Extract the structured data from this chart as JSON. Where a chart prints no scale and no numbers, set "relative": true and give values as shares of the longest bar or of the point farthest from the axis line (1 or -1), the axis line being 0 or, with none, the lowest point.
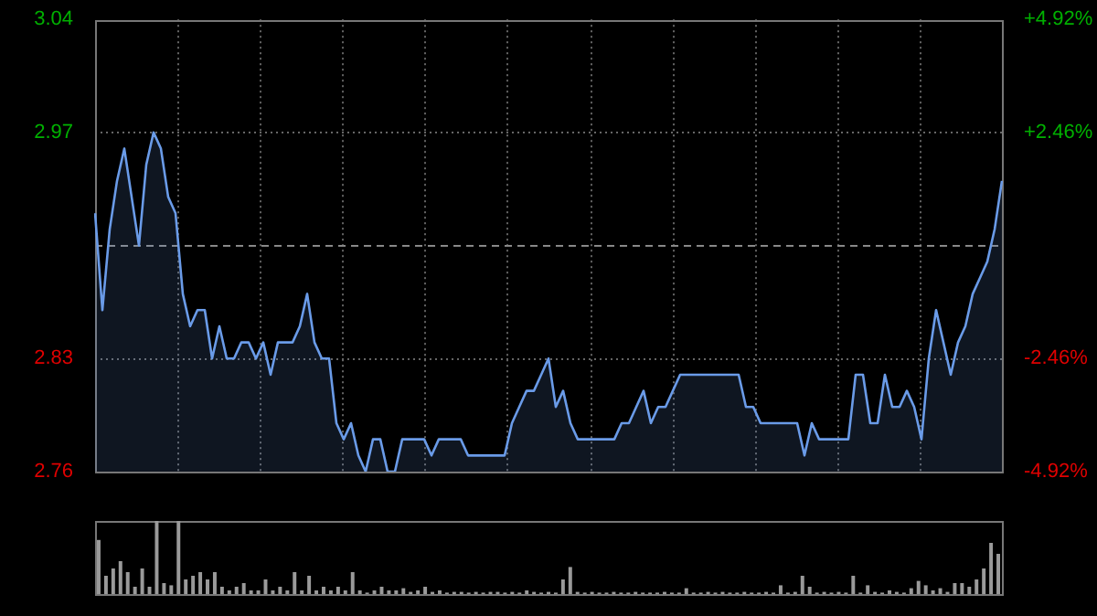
{
  "chart_data": [
    {
      "type": "area",
      "categories": [
        null,
        null,
        null,
        null,
        null,
        null,
        null,
        null,
        null,
        null,
        null,
        null,
        null,
        null,
        null,
        null,
        null,
        null,
        null,
        null,
        null,
        null,
        null,
        null,
        null,
        null,
        null,
        null,
        null,
        null,
        null,
        null,
        null,
        null,
        null,
        null,
        null,
        null,
        null,
        null,
        null,
        null,
        null,
        null,
        null,
        null,
        null,
        null,
        null,
        null,
        null,
        null,
        null,
        null,
        null,
        null,
        null,
        null,
        null,
        null,
        null,
        null,
        null,
        null,
        null,
        null,
        null,
        null,
        null,
        null,
        null,
        null,
        null,
        null,
        null,
        null,
        null,
        null,
        null,
        null,
        null,
        null,
        null,
        null,
        null,
        null,
        null,
        null,
        null,
        null,
        null,
        null,
        null,
        null,
        null,
        null,
        null,
        null,
        null,
        null,
        null,
        null,
        null,
        null,
        null,
        null,
        null,
        null,
        null,
        null,
        null,
        null,
        null,
        null,
        null,
        null,
        null,
        null,
        null,
        null,
        null,
        null,
        null,
        null,
        null
      ],
      "series": [
        {
          "color": "#6a9be8",
          "values": [
            2.92,
            2.86,
            2.91,
            2.94,
            2.96,
            2.93,
            2.9,
            2.95,
            2.97,
            2.96,
            2.93,
            2.92,
            2.87,
            2.85,
            2.86,
            2.86,
            2.83,
            2.85,
            2.83,
            2.83,
            2.84,
            2.84,
            2.83,
            2.84,
            2.82,
            2.84,
            2.84,
            2.84,
            2.85,
            2.87,
            2.84,
            2.83,
            2.83,
            2.79,
            2.78,
            2.79,
            2.77,
            2.76,
            2.78,
            2.78,
            2.76,
            2.76,
            2.78,
            2.78,
            2.78,
            2.78,
            2.77,
            2.78,
            2.78,
            2.78,
            2.78,
            2.77,
            2.77,
            2.77,
            2.77,
            2.77,
            2.77,
            2.79,
            2.8,
            2.81,
            2.81,
            2.82,
            2.83,
            2.8,
            2.81,
            2.79,
            2.78,
            2.78,
            2.78,
            2.78,
            2.78,
            2.78,
            2.79,
            2.79,
            2.8,
            2.81,
            2.79,
            2.8,
            2.8,
            2.81,
            2.82,
            2.82,
            2.82,
            2.82,
            2.82,
            2.82,
            2.82,
            2.82,
            2.82,
            2.8,
            2.8,
            2.79,
            2.79,
            2.79,
            2.79,
            2.79,
            2.79,
            2.77,
            2.79,
            2.78,
            2.78,
            2.78,
            2.78,
            2.78,
            2.82,
            2.82,
            2.79,
            2.79,
            2.82,
            2.8,
            2.8,
            2.81,
            2.8,
            2.78,
            2.83,
            2.86,
            2.84,
            2.82,
            2.84,
            2.85,
            2.87,
            2.88,
            2.89,
            2.91,
            2.94
          ]
        }
      ],
      "ylim": [
        2.76,
        3.04
      ],
      "yticks": [
        2.76,
        2.83,
        2.97,
        3.04
      ],
      "y2lim": [
        -4.92,
        4.92
      ],
      "y2ticks": [
        {
          "value": -4.92,
          "label": "-4.92%"
        },
        {
          "value": -2.46,
          "label": "-2.46%"
        },
        {
          "value": 2.46,
          "label": "+2.46%"
        },
        {
          "value": 4.92,
          "label": "+4.92%"
        }
      ],
      "ref_lines": [
        {
          "axis": "y",
          "value": 2.9,
          "line_style": "dashed"
        }
      ],
      "grid": true
    },
    {
      "type": "bar",
      "relative": true,
      "categories": [
        null,
        null,
        null,
        null,
        null,
        null,
        null,
        null,
        null,
        null,
        null,
        null,
        null,
        null,
        null,
        null,
        null,
        null,
        null,
        null,
        null,
        null,
        null,
        null,
        null,
        null,
        null,
        null,
        null,
        null,
        null,
        null,
        null,
        null,
        null,
        null,
        null,
        null,
        null,
        null,
        null,
        null,
        null,
        null,
        null,
        null,
        null,
        null,
        null,
        null,
        null,
        null,
        null,
        null,
        null,
        null,
        null,
        null,
        null,
        null,
        null,
        null,
        null,
        null,
        null,
        null,
        null,
        null,
        null,
        null,
        null,
        null,
        null,
        null,
        null,
        null,
        null,
        null,
        null,
        null,
        null,
        null,
        null,
        null,
        null,
        null,
        null,
        null,
        null,
        null,
        null,
        null,
        null,
        null,
        null,
        null,
        null,
        null,
        null,
        null,
        null,
        null,
        null,
        null,
        null,
        null,
        null,
        null,
        null,
        null,
        null,
        null,
        null,
        null,
        null,
        null,
        null,
        null,
        null,
        null,
        null,
        null,
        null,
        null,
        null
      ],
      "values": [
        0.74,
        0.25,
        0.35,
        0.45,
        0.3,
        0.1,
        0.35,
        0.1,
        1,
        0.15,
        0.12,
        1,
        0.2,
        0.25,
        0.3,
        0.2,
        0.3,
        0.1,
        0.05,
        0.1,
        0.15,
        0.05,
        0.05,
        0.2,
        0.05,
        0.1,
        0.05,
        0.3,
        0.05,
        0.25,
        0.05,
        0.1,
        0.05,
        0.1,
        0.05,
        0.3,
        0.05,
        0.02,
        0.05,
        0.1,
        0.05,
        0.05,
        0.08,
        0.03,
        0.05,
        0.1,
        0.03,
        0.05,
        0.02,
        0.03,
        0.03,
        0.02,
        0.03,
        0.02,
        0.03,
        0.03,
        0.02,
        0.03,
        0.02,
        0.05,
        0.03,
        0.02,
        0.03,
        0.02,
        0.2,
        0.37,
        0.03,
        0.02,
        0.03,
        0.02,
        0.02,
        0.03,
        0.02,
        0.02,
        0.03,
        0.02,
        0.02,
        0.02,
        0.03,
        0.02,
        0.02,
        0.08,
        0.02,
        0.02,
        0.03,
        0.02,
        0.03,
        0.02,
        0.02,
        0.03,
        0.02,
        0.02,
        0.03,
        0.02,
        0.12,
        0.02,
        0.03,
        0.25,
        0.1,
        0.02,
        0.03,
        0.02,
        0.03,
        0.02,
        0.25,
        0.02,
        0.12,
        0.03,
        0.02,
        0.05,
        0.03,
        0.02,
        0.08,
        0.18,
        0.12,
        0.05,
        0.08,
        0.03,
        0.15,
        0.15,
        0.1,
        0.2,
        0.35,
        0.7,
        0.55
      ],
      "color": "#9a9a9a"
    }
  ]
}
